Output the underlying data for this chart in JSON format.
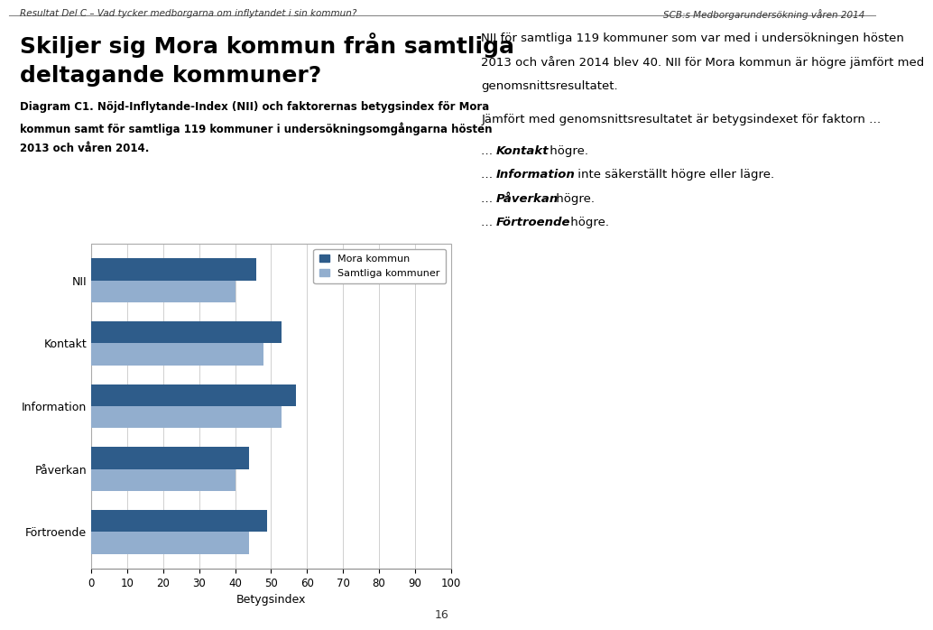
{
  "categories": [
    "Förtroende",
    "Påverkan",
    "Information",
    "Kontakt",
    "NII"
  ],
  "mora_values": [
    49,
    44,
    57,
    53,
    46
  ],
  "samtliga_values": [
    44,
    40,
    53,
    48,
    40
  ],
  "mora_color": "#2E5C8A",
  "samtliga_color": "#92AECE",
  "xlabel": "Betygsindex",
  "xlim": [
    0,
    100
  ],
  "xticks": [
    0,
    10,
    20,
    30,
    40,
    50,
    60,
    70,
    80,
    90,
    100
  ],
  "legend_mora": "Mora kommun",
  "legend_samtliga": "Samtliga kommuner",
  "bar_height": 0.35,
  "fig_bg": "#FFFFFF",
  "ax_bg": "#FFFFFF",
  "grid_color": "#D0D0D0",
  "header_left": "Resultat Del C – Vad tycker medborgarna om inflytandet i sin kommun?",
  "header_right": "SCB:s Medborgarundersökning våren 2014",
  "main_title_line1": "Skiljer sig Mora kommun från samtliga",
  "main_title_line2": "deltagande kommuner?",
  "diagram_label_bold": "Diagram C1. Nöjd-Inflytande-Index (NII) och faktorernas betygsindex för Mora",
  "diagram_label_line2": "kommun samt för samtliga 119 kommuner i undersökningsomgångarna hösten",
  "diagram_label_line3": "2013 och våren 2014.",
  "right_para1_line1": "NII för samtliga 119 kommuner som var med i undersökningen hösten",
  "right_para1_line2": "2013 och våren 2014 blev 40. NII för Mora kommun är högre jämfört med",
  "right_para1_line3": "genomsnittsresultatet.",
  "right_para2": "Jämfört med genomsnittsresultatet är betygsindexet för faktorn …",
  "page_number": "16"
}
